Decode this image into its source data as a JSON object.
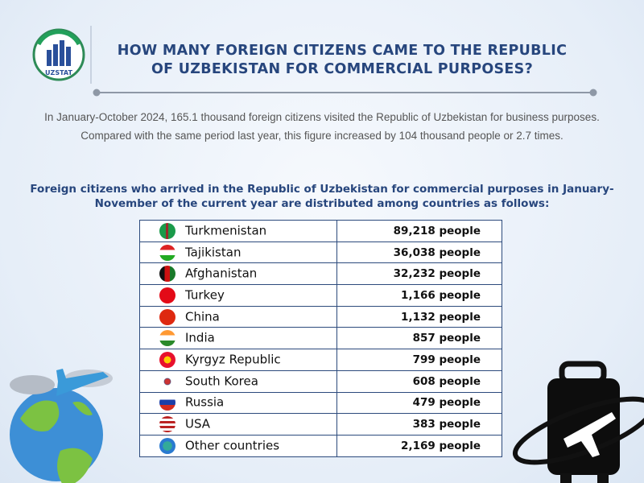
{
  "logo": {
    "text": "UZSTAT"
  },
  "header": {
    "title": [
      "HOW MANY FOREIGN CITIZENS CAME TO THE REPUBLIC",
      "OF UZBEKISTAN FOR COMMERCIAL PURPOSES?"
    ]
  },
  "intro": "In January-October 2024, 165.1 thousand foreign citizens visited the Republic of Uzbekistan for business purposes. Compared with the same period last year, this figure increased by 104 thousand people or 2.7 times.",
  "subheading": "Foreign citizens who arrived in the Republic of Uzbekistan for commercial purposes in January-November of the current year are distributed among countries as follows:",
  "table": {
    "rows": [
      [
        "Turkmenistan",
        "89,218 people"
      ],
      [
        "Tajikistan",
        "36,038 people"
      ],
      [
        "Afghanistan",
        "32,232 people"
      ],
      [
        "Turkey",
        "1,166 people"
      ],
      [
        "China",
        "1,132 people"
      ],
      [
        "India",
        "857 people"
      ],
      [
        "Kyrgyz Republic",
        "799 people"
      ],
      [
        "South Korea",
        "608 people"
      ],
      [
        "Russia",
        "479 people"
      ],
      [
        "USA",
        "383 people"
      ],
      [
        "Other countries",
        "2,169 people"
      ]
    ]
  }
}
